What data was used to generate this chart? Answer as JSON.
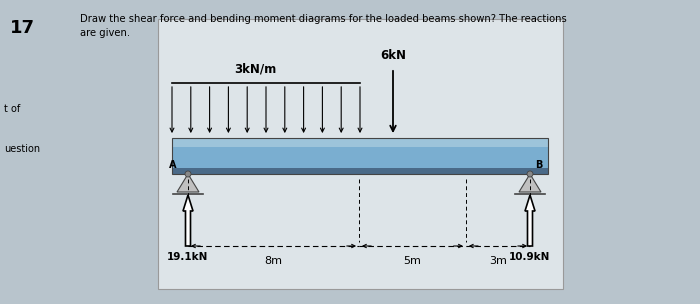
{
  "title_num": "17",
  "title_line1": "Draw the shear force and bending moment diagrams for the loaded beams shown? The reactions",
  "title_line2": "are given.",
  "left_label1": "t of",
  "left_label2": "uestion",
  "load_label": "3kN/m",
  "point_load_label": "6kN",
  "reaction_left_label": "19.1kN",
  "reaction_right_label": "10.9kN",
  "dim_left": "8m",
  "dim_mid": "5m",
  "dim_right": "3m",
  "support_A_label": "A",
  "support_B_label": "B",
  "outer_bg": "#b8c4cc",
  "inner_bg": "#dde4e8",
  "beam_main_color": "#7aaed0",
  "beam_top_color": "#9dc4da",
  "beam_bot_color": "#4a6a88"
}
